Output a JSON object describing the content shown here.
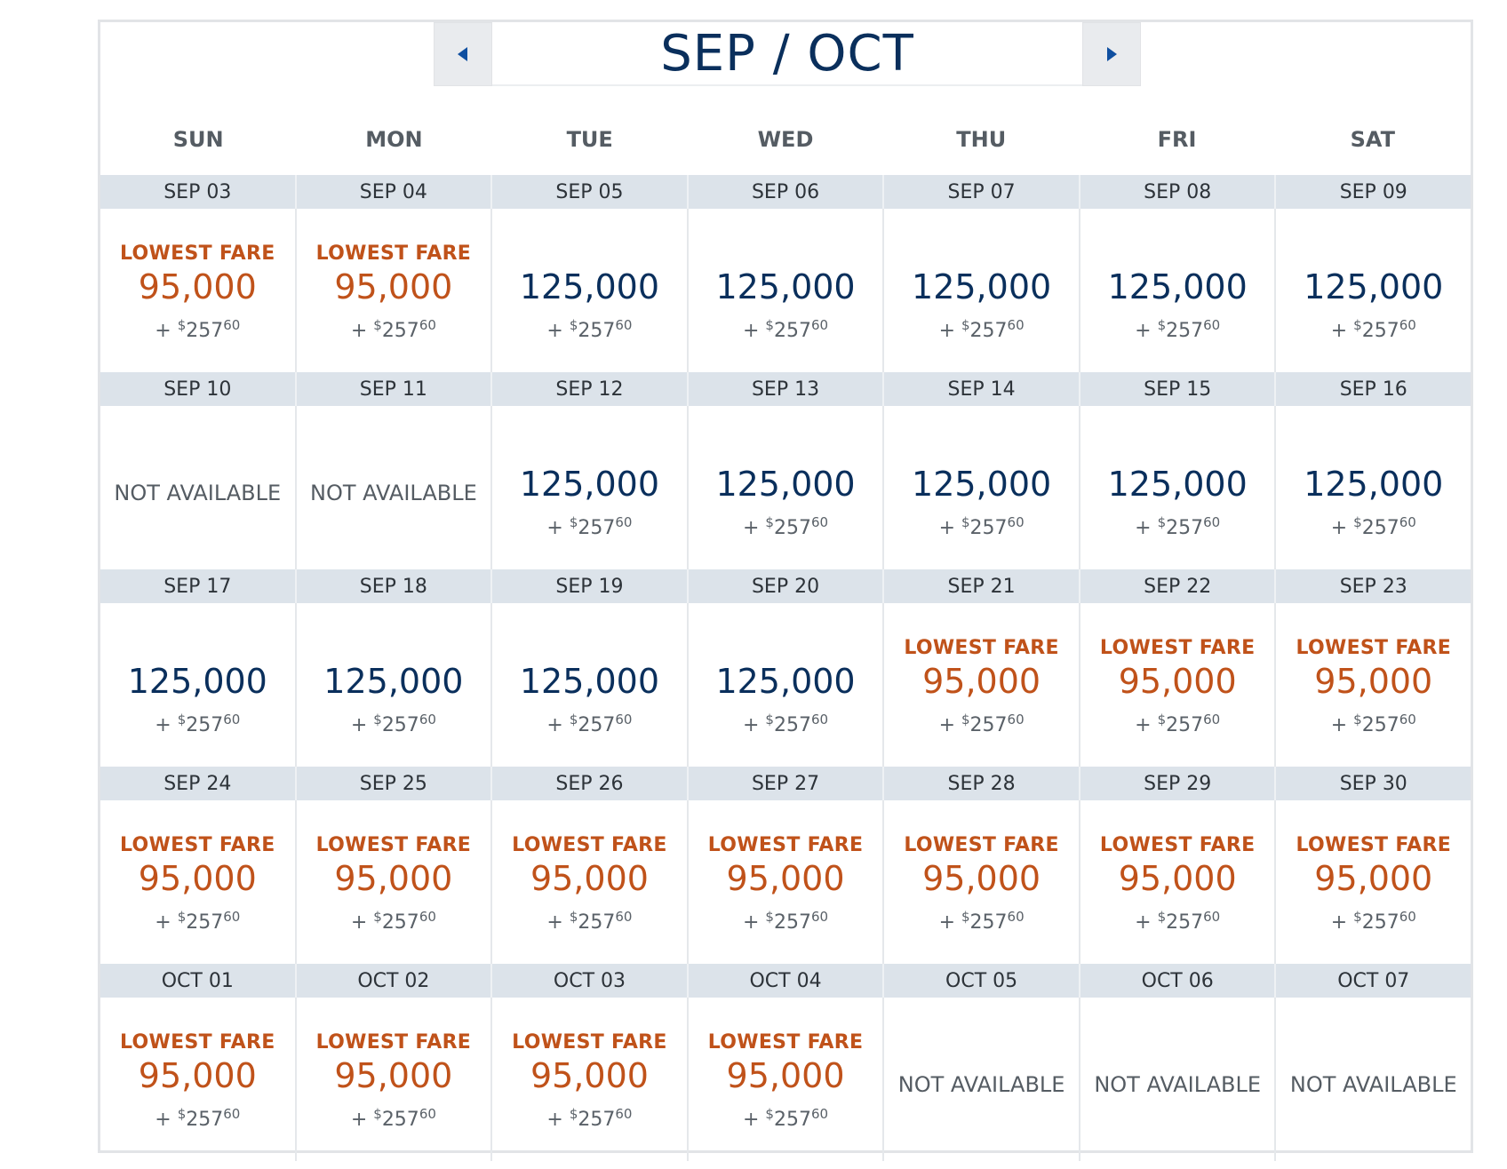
{
  "header": {
    "month_title": "SEP / OCT",
    "prev_icon": "caret-left-icon",
    "next_icon": "caret-right-icon"
  },
  "weekdays": [
    "SUN",
    "MON",
    "TUE",
    "WED",
    "THU",
    "FRI",
    "SAT"
  ],
  "labels": {
    "lowest_fare": "LOWEST FARE",
    "not_available": "NOT AVAILABLE",
    "tax_prefix": "+ ",
    "currency_symbol": "$"
  },
  "colors": {
    "navy": "#0a2f5c",
    "orange": "#c0521a",
    "header_bg": "#dce3ea",
    "nav_bg": "#e9ebee"
  },
  "weeks": [
    [
      {
        "date": "SEP 03",
        "status": "lowest",
        "miles": "95,000",
        "tax_whole": "257",
        "tax_cents": "60"
      },
      {
        "date": "SEP 04",
        "status": "lowest",
        "miles": "95,000",
        "tax_whole": "257",
        "tax_cents": "60"
      },
      {
        "date": "SEP 05",
        "status": "regular",
        "miles": "125,000",
        "tax_whole": "257",
        "tax_cents": "60"
      },
      {
        "date": "SEP 06",
        "status": "regular",
        "miles": "125,000",
        "tax_whole": "257",
        "tax_cents": "60"
      },
      {
        "date": "SEP 07",
        "status": "regular",
        "miles": "125,000",
        "tax_whole": "257",
        "tax_cents": "60"
      },
      {
        "date": "SEP 08",
        "status": "regular",
        "miles": "125,000",
        "tax_whole": "257",
        "tax_cents": "60"
      },
      {
        "date": "SEP 09",
        "status": "regular",
        "miles": "125,000",
        "tax_whole": "257",
        "tax_cents": "60"
      }
    ],
    [
      {
        "date": "SEP 10",
        "status": "na"
      },
      {
        "date": "SEP 11",
        "status": "na"
      },
      {
        "date": "SEP 12",
        "status": "regular",
        "miles": "125,000",
        "tax_whole": "257",
        "tax_cents": "60"
      },
      {
        "date": "SEP 13",
        "status": "regular",
        "miles": "125,000",
        "tax_whole": "257",
        "tax_cents": "60"
      },
      {
        "date": "SEP 14",
        "status": "regular",
        "miles": "125,000",
        "tax_whole": "257",
        "tax_cents": "60"
      },
      {
        "date": "SEP 15",
        "status": "regular",
        "miles": "125,000",
        "tax_whole": "257",
        "tax_cents": "60"
      },
      {
        "date": "SEP 16",
        "status": "regular",
        "miles": "125,000",
        "tax_whole": "257",
        "tax_cents": "60"
      }
    ],
    [
      {
        "date": "SEP 17",
        "status": "regular",
        "miles": "125,000",
        "tax_whole": "257",
        "tax_cents": "60"
      },
      {
        "date": "SEP 18",
        "status": "regular",
        "miles": "125,000",
        "tax_whole": "257",
        "tax_cents": "60"
      },
      {
        "date": "SEP 19",
        "status": "regular",
        "miles": "125,000",
        "tax_whole": "257",
        "tax_cents": "60"
      },
      {
        "date": "SEP 20",
        "status": "regular",
        "miles": "125,000",
        "tax_whole": "257",
        "tax_cents": "60"
      },
      {
        "date": "SEP 21",
        "status": "lowest",
        "miles": "95,000",
        "tax_whole": "257",
        "tax_cents": "60"
      },
      {
        "date": "SEP 22",
        "status": "lowest",
        "miles": "95,000",
        "tax_whole": "257",
        "tax_cents": "60"
      },
      {
        "date": "SEP 23",
        "status": "lowest",
        "miles": "95,000",
        "tax_whole": "257",
        "tax_cents": "60"
      }
    ],
    [
      {
        "date": "SEP 24",
        "status": "lowest",
        "miles": "95,000",
        "tax_whole": "257",
        "tax_cents": "60"
      },
      {
        "date": "SEP 25",
        "status": "lowest",
        "miles": "95,000",
        "tax_whole": "257",
        "tax_cents": "60"
      },
      {
        "date": "SEP 26",
        "status": "lowest",
        "miles": "95,000",
        "tax_whole": "257",
        "tax_cents": "60"
      },
      {
        "date": "SEP 27",
        "status": "lowest",
        "miles": "95,000",
        "tax_whole": "257",
        "tax_cents": "60"
      },
      {
        "date": "SEP 28",
        "status": "lowest",
        "miles": "95,000",
        "tax_whole": "257",
        "tax_cents": "60"
      },
      {
        "date": "SEP 29",
        "status": "lowest",
        "miles": "95,000",
        "tax_whole": "257",
        "tax_cents": "60"
      },
      {
        "date": "SEP 30",
        "status": "lowest",
        "miles": "95,000",
        "tax_whole": "257",
        "tax_cents": "60"
      }
    ],
    [
      {
        "date": "OCT 01",
        "status": "lowest",
        "miles": "95,000",
        "tax_whole": "257",
        "tax_cents": "60"
      },
      {
        "date": "OCT 02",
        "status": "lowest",
        "miles": "95,000",
        "tax_whole": "257",
        "tax_cents": "60"
      },
      {
        "date": "OCT 03",
        "status": "lowest",
        "miles": "95,000",
        "tax_whole": "257",
        "tax_cents": "60"
      },
      {
        "date": "OCT 04",
        "status": "lowest",
        "miles": "95,000",
        "tax_whole": "257",
        "tax_cents": "60"
      },
      {
        "date": "OCT 05",
        "status": "na"
      },
      {
        "date": "OCT 06",
        "status": "na"
      },
      {
        "date": "OCT 07",
        "status": "na"
      }
    ]
  ]
}
